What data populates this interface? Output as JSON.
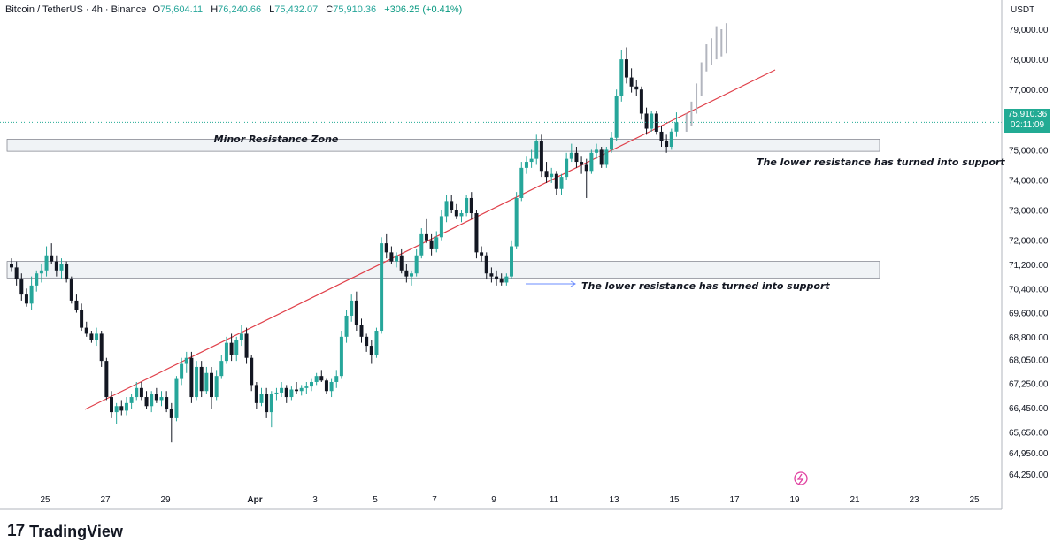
{
  "header": {
    "symbol": "Bitcoin / TetherUS · 4h · Binance",
    "open_label": "O",
    "open": "75,604.11",
    "high_label": "H",
    "high": "76,240.66",
    "low_label": "L",
    "low": "75,432.07",
    "close_label": "C",
    "close": "75,910.36",
    "change": "+306.25 (+0.41%)"
  },
  "axis": {
    "unit": "USDT",
    "price_ticks": [
      "79,000.00",
      "78,000.00",
      "77,000.00",
      "75,000.00",
      "74,000.00",
      "73,000.00",
      "72,000.00",
      "71,200.00",
      "70,400.00",
      "69,600.00",
      "68,800.00",
      "68,050.00",
      "67,250.00",
      "66,450.00",
      "65,650.00",
      "64,950.00",
      "64,250.00"
    ],
    "date_ticks": [
      "25",
      "27",
      "29",
      "Apr",
      "3",
      "5",
      "7",
      "9",
      "11",
      "13",
      "15",
      "17",
      "19",
      "21",
      "23",
      "25"
    ]
  },
  "last_price": {
    "value": "75,910.36",
    "countdown": "02:11:09"
  },
  "annotations": {
    "zone_label": "Minor Resistance Zone",
    "note_upper": "The lower resistance has turned into support",
    "note_lower": "The lower resistance has turned into support"
  },
  "brand": {
    "logo": "17",
    "name": "TradingView"
  },
  "colors": {
    "up": "#26a69a",
    "down": "#131722",
    "trendline": "#e0404a",
    "zone": "#f0f3f6",
    "forecast": "#b2b5be",
    "price_tag": "#22ab94"
  },
  "chart_data": {
    "type": "candlestick",
    "timeframe": "4h",
    "ylim": [
      64000,
      79400
    ],
    "x_start": "Mar 24 00:00",
    "x_axis_labels": [
      "25",
      "27",
      "29",
      "Apr",
      "3",
      "5",
      "7",
      "9",
      "11",
      "13",
      "15",
      "17",
      "19",
      "21",
      "23",
      "25"
    ],
    "candles": [
      {
        "o": 71200,
        "h": 71400,
        "l": 70950,
        "c": 71100
      },
      {
        "o": 71100,
        "h": 71300,
        "l": 70500,
        "c": 70700
      },
      {
        "o": 70700,
        "h": 70900,
        "l": 70000,
        "c": 70200
      },
      {
        "o": 70200,
        "h": 70400,
        "l": 69800,
        "c": 69900
      },
      {
        "o": 69900,
        "h": 70800,
        "l": 69700,
        "c": 70500
      },
      {
        "o": 70500,
        "h": 71000,
        "l": 70300,
        "c": 70900
      },
      {
        "o": 70900,
        "h": 71200,
        "l": 70600,
        "c": 71000
      },
      {
        "o": 71000,
        "h": 71800,
        "l": 70800,
        "c": 71500
      },
      {
        "o": 71500,
        "h": 71900,
        "l": 71200,
        "c": 71300
      },
      {
        "o": 71300,
        "h": 71500,
        "l": 70800,
        "c": 71000
      },
      {
        "o": 71000,
        "h": 71400,
        "l": 70700,
        "c": 71200
      },
      {
        "o": 71200,
        "h": 71300,
        "l": 70600,
        "c": 70700
      },
      {
        "o": 70700,
        "h": 70800,
        "l": 69900,
        "c": 70000
      },
      {
        "o": 70000,
        "h": 70200,
        "l": 69600,
        "c": 69700
      },
      {
        "o": 69700,
        "h": 69900,
        "l": 69000,
        "c": 69100
      },
      {
        "o": 69100,
        "h": 69300,
        "l": 68800,
        "c": 68900
      },
      {
        "o": 68900,
        "h": 69000,
        "l": 68600,
        "c": 68700
      },
      {
        "o": 68700,
        "h": 69100,
        "l": 68500,
        "c": 68900
      },
      {
        "o": 68900,
        "h": 69000,
        "l": 67800,
        "c": 68000
      },
      {
        "o": 68000,
        "h": 68100,
        "l": 66700,
        "c": 66800
      },
      {
        "o": 66800,
        "h": 67000,
        "l": 66100,
        "c": 66300
      },
      {
        "o": 66300,
        "h": 66600,
        "l": 65900,
        "c": 66500
      },
      {
        "o": 66500,
        "h": 66700,
        "l": 66200,
        "c": 66350
      },
      {
        "o": 66350,
        "h": 66800,
        "l": 66200,
        "c": 66600
      },
      {
        "o": 66600,
        "h": 66900,
        "l": 66400,
        "c": 66800
      },
      {
        "o": 66800,
        "h": 67300,
        "l": 66700,
        "c": 67100
      },
      {
        "o": 67100,
        "h": 67300,
        "l": 66700,
        "c": 66800
      },
      {
        "o": 66800,
        "h": 67000,
        "l": 66400,
        "c": 66500
      },
      {
        "o": 66500,
        "h": 67000,
        "l": 66300,
        "c": 66900
      },
      {
        "o": 66900,
        "h": 67100,
        "l": 66600,
        "c": 66700
      },
      {
        "o": 66700,
        "h": 67000,
        "l": 66500,
        "c": 66800
      },
      {
        "o": 66800,
        "h": 67000,
        "l": 66300,
        "c": 66400
      },
      {
        "o": 66400,
        "h": 66600,
        "l": 65300,
        "c": 66100
      },
      {
        "o": 66100,
        "h": 67500,
        "l": 66000,
        "c": 67400
      },
      {
        "o": 67400,
        "h": 68100,
        "l": 67200,
        "c": 67900
      },
      {
        "o": 67900,
        "h": 68300,
        "l": 67600,
        "c": 68100
      },
      {
        "o": 68100,
        "h": 68300,
        "l": 66600,
        "c": 66800
      },
      {
        "o": 66800,
        "h": 68000,
        "l": 66700,
        "c": 67800
      },
      {
        "o": 67800,
        "h": 68000,
        "l": 66800,
        "c": 67000
      },
      {
        "o": 67000,
        "h": 67800,
        "l": 66900,
        "c": 67600
      },
      {
        "o": 67600,
        "h": 67800,
        "l": 66400,
        "c": 66800
      },
      {
        "o": 66800,
        "h": 67700,
        "l": 66700,
        "c": 67500
      },
      {
        "o": 67500,
        "h": 68200,
        "l": 67400,
        "c": 68000
      },
      {
        "o": 68000,
        "h": 68800,
        "l": 67900,
        "c": 68600
      },
      {
        "o": 68600,
        "h": 68900,
        "l": 68000,
        "c": 68200
      },
      {
        "o": 68200,
        "h": 68800,
        "l": 68000,
        "c": 68700
      },
      {
        "o": 68700,
        "h": 69200,
        "l": 68500,
        "c": 68900
      },
      {
        "o": 68900,
        "h": 69100,
        "l": 67900,
        "c": 68100
      },
      {
        "o": 68100,
        "h": 68200,
        "l": 67000,
        "c": 67200
      },
      {
        "o": 67200,
        "h": 67300,
        "l": 66400,
        "c": 66600
      },
      {
        "o": 66600,
        "h": 67100,
        "l": 66500,
        "c": 66900
      },
      {
        "o": 66900,
        "h": 67100,
        "l": 66100,
        "c": 66300
      },
      {
        "o": 66300,
        "h": 67000,
        "l": 65800,
        "c": 66900
      },
      {
        "o": 66900,
        "h": 67100,
        "l": 66700,
        "c": 66950
      },
      {
        "o": 66950,
        "h": 67300,
        "l": 66800,
        "c": 67100
      },
      {
        "o": 67100,
        "h": 67200,
        "l": 66600,
        "c": 66800
      },
      {
        "o": 66800,
        "h": 67150,
        "l": 66700,
        "c": 67050
      },
      {
        "o": 67050,
        "h": 67300,
        "l": 66900,
        "c": 67000
      },
      {
        "o": 67000,
        "h": 67200,
        "l": 66850,
        "c": 67100
      },
      {
        "o": 67100,
        "h": 67300,
        "l": 66900,
        "c": 67150
      },
      {
        "o": 67150,
        "h": 67400,
        "l": 67000,
        "c": 67300
      },
      {
        "o": 67300,
        "h": 67600,
        "l": 67200,
        "c": 67500
      },
      {
        "o": 67500,
        "h": 67700,
        "l": 67300,
        "c": 67350
      },
      {
        "o": 67350,
        "h": 67400,
        "l": 66900,
        "c": 67000
      },
      {
        "o": 67000,
        "h": 67400,
        "l": 66800,
        "c": 67300
      },
      {
        "o": 67300,
        "h": 67700,
        "l": 67100,
        "c": 67500
      },
      {
        "o": 67500,
        "h": 69000,
        "l": 67400,
        "c": 68800
      },
      {
        "o": 68800,
        "h": 69700,
        "l": 68600,
        "c": 69500
      },
      {
        "o": 69500,
        "h": 70200,
        "l": 69300,
        "c": 70000
      },
      {
        "o": 70000,
        "h": 70300,
        "l": 69000,
        "c": 69200
      },
      {
        "o": 69200,
        "h": 69400,
        "l": 68600,
        "c": 68800
      },
      {
        "o": 68800,
        "h": 68900,
        "l": 68300,
        "c": 68500
      },
      {
        "o": 68500,
        "h": 68700,
        "l": 67900,
        "c": 68200
      },
      {
        "o": 68200,
        "h": 69100,
        "l": 68100,
        "c": 69000
      },
      {
        "o": 69000,
        "h": 72100,
        "l": 68900,
        "c": 71900
      },
      {
        "o": 71900,
        "h": 72200,
        "l": 71400,
        "c": 71600
      },
      {
        "o": 71600,
        "h": 71800,
        "l": 71200,
        "c": 71300
      },
      {
        "o": 71300,
        "h": 71600,
        "l": 71100,
        "c": 71500
      },
      {
        "o": 71500,
        "h": 71700,
        "l": 70900,
        "c": 71000
      },
      {
        "o": 71000,
        "h": 71200,
        "l": 70600,
        "c": 70800
      },
      {
        "o": 70800,
        "h": 71000,
        "l": 70500,
        "c": 70900
      },
      {
        "o": 70900,
        "h": 71700,
        "l": 70800,
        "c": 71500
      },
      {
        "o": 71500,
        "h": 72400,
        "l": 71400,
        "c": 72200
      },
      {
        "o": 72200,
        "h": 72700,
        "l": 71900,
        "c": 72000
      },
      {
        "o": 72000,
        "h": 72200,
        "l": 71500,
        "c": 71700
      },
      {
        "o": 71700,
        "h": 72300,
        "l": 71600,
        "c": 72100
      },
      {
        "o": 72100,
        "h": 73000,
        "l": 72000,
        "c": 72800
      },
      {
        "o": 72800,
        "h": 73500,
        "l": 72600,
        "c": 73300
      },
      {
        "o": 73300,
        "h": 73500,
        "l": 72900,
        "c": 73000
      },
      {
        "o": 73000,
        "h": 73200,
        "l": 72700,
        "c": 72800
      },
      {
        "o": 72800,
        "h": 73000,
        "l": 72600,
        "c": 72900
      },
      {
        "o": 72900,
        "h": 73500,
        "l": 72800,
        "c": 73400
      },
      {
        "o": 73400,
        "h": 73600,
        "l": 72700,
        "c": 72900
      },
      {
        "o": 72900,
        "h": 73000,
        "l": 71400,
        "c": 71600
      },
      {
        "o": 71600,
        "h": 71800,
        "l": 71300,
        "c": 71500
      },
      {
        "o": 71500,
        "h": 71600,
        "l": 70700,
        "c": 70900
      },
      {
        "o": 70900,
        "h": 71100,
        "l": 70600,
        "c": 70800
      },
      {
        "o": 70800,
        "h": 71000,
        "l": 70500,
        "c": 70700
      },
      {
        "o": 70700,
        "h": 70900,
        "l": 70500,
        "c": 70600
      },
      {
        "o": 70600,
        "h": 70900,
        "l": 70500,
        "c": 70800
      },
      {
        "o": 70800,
        "h": 72000,
        "l": 70700,
        "c": 71800
      },
      {
        "o": 71800,
        "h": 73600,
        "l": 71700,
        "c": 73400
      },
      {
        "o": 73400,
        "h": 74600,
        "l": 73300,
        "c": 74400
      },
      {
        "o": 74400,
        "h": 74800,
        "l": 74200,
        "c": 74600
      },
      {
        "o": 74600,
        "h": 75000,
        "l": 74400,
        "c": 74700
      },
      {
        "o": 74700,
        "h": 75500,
        "l": 74500,
        "c": 75300
      },
      {
        "o": 75300,
        "h": 75500,
        "l": 74100,
        "c": 74300
      },
      {
        "o": 74300,
        "h": 74600,
        "l": 73900,
        "c": 74100
      },
      {
        "o": 74100,
        "h": 74400,
        "l": 73900,
        "c": 74200
      },
      {
        "o": 74200,
        "h": 74300,
        "l": 73500,
        "c": 73700
      },
      {
        "o": 73700,
        "h": 74200,
        "l": 73500,
        "c": 74100
      },
      {
        "o": 74100,
        "h": 74900,
        "l": 74000,
        "c": 74700
      },
      {
        "o": 74700,
        "h": 75200,
        "l": 74600,
        "c": 74900
      },
      {
        "o": 74900,
        "h": 75100,
        "l": 74400,
        "c": 74600
      },
      {
        "o": 74600,
        "h": 74800,
        "l": 74200,
        "c": 74500
      },
      {
        "o": 74500,
        "h": 74700,
        "l": 73400,
        "c": 74300
      },
      {
        "o": 74300,
        "h": 75000,
        "l": 74200,
        "c": 74900
      },
      {
        "o": 74900,
        "h": 75200,
        "l": 74700,
        "c": 75000
      },
      {
        "o": 75000,
        "h": 75100,
        "l": 74400,
        "c": 74500
      },
      {
        "o": 74500,
        "h": 75100,
        "l": 74400,
        "c": 75000
      },
      {
        "o": 75000,
        "h": 75600,
        "l": 74900,
        "c": 75400
      },
      {
        "o": 75400,
        "h": 77000,
        "l": 75300,
        "c": 76800
      },
      {
        "o": 76800,
        "h": 78300,
        "l": 76600,
        "c": 78000
      },
      {
        "o": 78000,
        "h": 78400,
        "l": 77200,
        "c": 77400
      },
      {
        "o": 77400,
        "h": 77700,
        "l": 76900,
        "c": 77100
      },
      {
        "o": 77100,
        "h": 77300,
        "l": 76800,
        "c": 77000
      },
      {
        "o": 77000,
        "h": 77100,
        "l": 76000,
        "c": 76200
      },
      {
        "o": 76200,
        "h": 76400,
        "l": 75500,
        "c": 75700
      },
      {
        "o": 75700,
        "h": 76300,
        "l": 75600,
        "c": 76200
      },
      {
        "o": 76200,
        "h": 76300,
        "l": 75500,
        "c": 75600
      },
      {
        "o": 75600,
        "h": 75800,
        "l": 75100,
        "c": 75300
      },
      {
        "o": 75300,
        "h": 75500,
        "l": 74900,
        "c": 75100
      },
      {
        "o": 75100,
        "h": 75700,
        "l": 75000,
        "c": 75604
      },
      {
        "o": 75604,
        "h": 76241,
        "l": 75432,
        "c": 75910
      }
    ],
    "forecast_bars": [
      {
        "h": 76200,
        "l": 75600
      },
      {
        "h": 76600,
        "l": 75800
      },
      {
        "h": 77200,
        "l": 76200
      },
      {
        "h": 77900,
        "l": 76800
      },
      {
        "h": 78500,
        "l": 77600
      },
      {
        "h": 78700,
        "l": 77800
      },
      {
        "h": 79100,
        "l": 78000
      },
      {
        "h": 79000,
        "l": 78100
      },
      {
        "h": 79200,
        "l": 78200
      }
    ],
    "zones": [
      {
        "label": "Minor Resistance Zone",
        "low": 74950,
        "high": 75350
      },
      {
        "label": "",
        "low": 70750,
        "high": 71300
      }
    ],
    "trendline": [
      {
        "i": 20,
        "price": 66300
      },
      {
        "i": 147,
        "price": 77600
      }
    ],
    "last_price": 75910.36
  }
}
